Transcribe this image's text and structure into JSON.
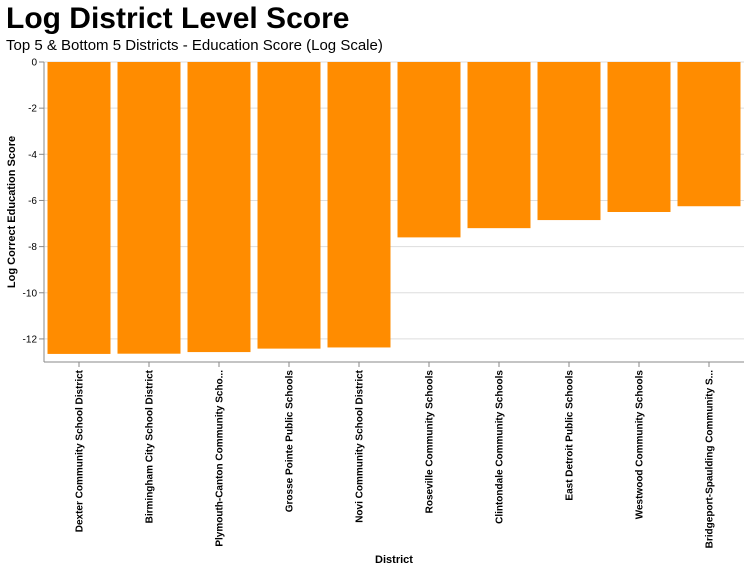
{
  "chart_data": {
    "type": "bar",
    "title": "Log District Level Score",
    "subtitle": "Top 5 & Bottom 5 Districts - Education Score (Log Scale)",
    "xlabel": "District",
    "ylabel": "Log Correct Education Score",
    "ylim": [
      -13,
      0
    ],
    "yticks": [
      0,
      -2,
      -4,
      -6,
      -8,
      -10,
      -12
    ],
    "grid": true,
    "bar_color": "#ff8c00",
    "categories": [
      "Dexter Community School District",
      "Birmingham City School District",
      "Plymouth-Canton Community Scho...",
      "Grosse Pointe Public Schools",
      "Novi Community School District",
      "Roseville Community Schools",
      "Clintondale Community Schools",
      "East Detroit Public Schools",
      "Westwood Community Schools",
      "Bridgeport-Spaulding Community S..."
    ],
    "values": [
      -12.65,
      -12.64,
      -12.57,
      -12.42,
      -12.37,
      -7.6,
      -7.2,
      -6.85,
      -6.5,
      -6.25
    ]
  }
}
